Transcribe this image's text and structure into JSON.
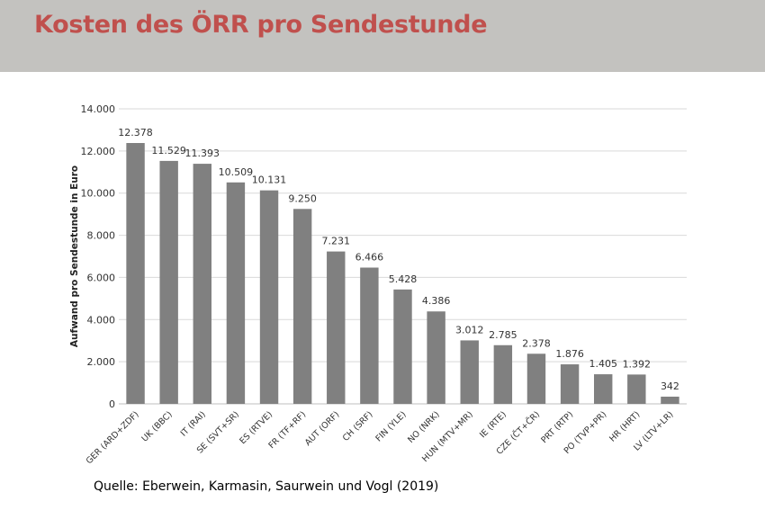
{
  "title": "Kosten des ÖRR pro Sendestunde",
  "source": "Quelle: Eberwein, Karmasin, Saurwein und Vogl (2019)",
  "colors": {
    "bar": "#808080",
    "title": "#c0504d",
    "header_bg": "#c3c2bf",
    "grid": "#d9d9d9"
  },
  "chart_data": {
    "type": "bar",
    "ylabel": "Aufwand pro Sendestunde in Euro",
    "xlabel": "",
    "ylim": [
      0,
      14000
    ],
    "yticks": [
      0,
      2000,
      4000,
      6000,
      8000,
      10000,
      12000,
      14000
    ],
    "ytick_labels": [
      "0",
      "2.000",
      "4.000",
      "6.000",
      "8.000",
      "10.000",
      "12.000",
      "14.000"
    ],
    "grid": true,
    "categories": [
      "GER (ARD+ZDF)",
      "UK (BBC)",
      "IT (RAI)",
      "SE (SVT+SR)",
      "ES (RTVE)",
      "FR (TF+RF)",
      "AUT (ORF)",
      "CH (SRF)",
      "FIN (YLE)",
      "NO (NRK)",
      "HUN (MTV+MR)",
      "IE (RTE)",
      "CZE (ČT+ČR)",
      "PRT (RTP)",
      "PO (TVP+PR)",
      "HR (HRT)",
      "LV (LTV+LR)"
    ],
    "values": [
      12378,
      11529,
      11393,
      10509,
      10131,
      9250,
      7231,
      6466,
      5428,
      4386,
      3012,
      2785,
      2378,
      1876,
      1405,
      1392,
      342
    ],
    "value_labels": [
      "12.378",
      "11.529",
      "11.393",
      "10.509",
      "10.131",
      "9.250",
      "7.231",
      "6.466",
      "5.428",
      "4.386",
      "3.012",
      "2.785",
      "2.378",
      "1.876",
      "1.405",
      "1.392",
      "342"
    ]
  }
}
